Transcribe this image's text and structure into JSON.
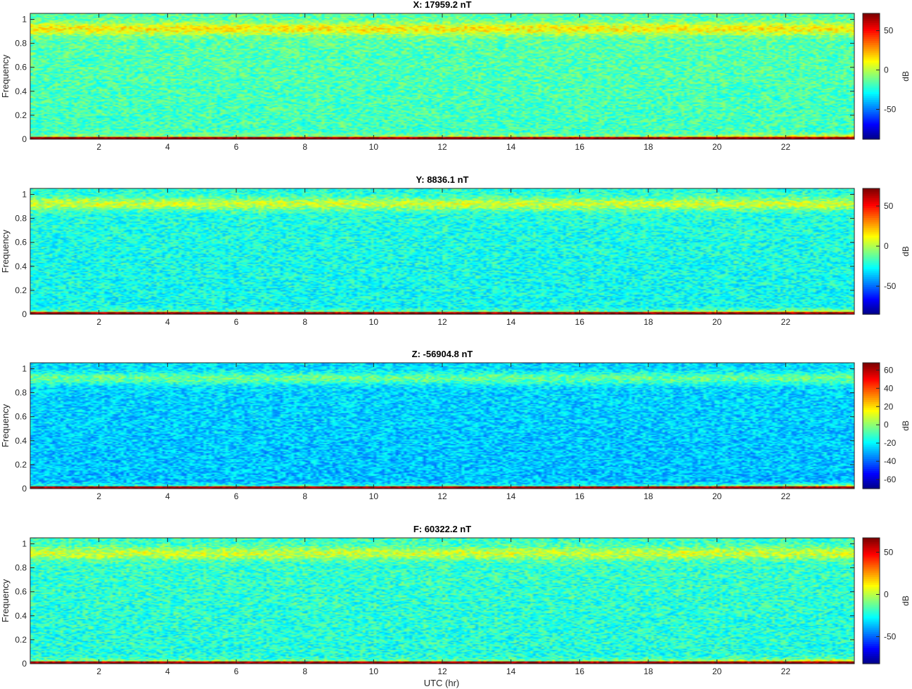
{
  "figure": {
    "xlabel": "UTC (hr)"
  },
  "chart_data": [
    {
      "type": "heatmap",
      "title": "X: 17959.2 nT",
      "xlabel": "",
      "ylabel": "Frequency",
      "xlim": [
        0,
        24
      ],
      "ylim": [
        0,
        1.05
      ],
      "xticks": [
        2,
        4,
        6,
        8,
        10,
        12,
        14,
        16,
        18,
        20,
        22
      ],
      "yticks": [
        0,
        0.2,
        0.4,
        0.6,
        0.8,
        1
      ],
      "colorbar": {
        "label": "dB",
        "clim": [
          -88,
          72
        ],
        "ticks": [
          -50,
          0,
          50
        ],
        "colormap": "jet"
      },
      "baseline_db": -18,
      "band_db": 10,
      "lowfreq_db": 70,
      "noise_db": 14
    },
    {
      "type": "heatmap",
      "title": "Y: 8836.1 nT",
      "xlabel": "",
      "ylabel": "Frequency",
      "xlim": [
        0,
        24
      ],
      "ylim": [
        0,
        1.05
      ],
      "xticks": [
        2,
        4,
        6,
        8,
        10,
        12,
        14,
        16,
        18,
        20,
        22
      ],
      "yticks": [
        0,
        0.2,
        0.4,
        0.6,
        0.8,
        1
      ],
      "colorbar": {
        "label": "dB",
        "clim": [
          -85,
          72
        ],
        "ticks": [
          -50,
          0,
          50
        ],
        "colormap": "jet"
      },
      "baseline_db": -25,
      "band_db": 2,
      "lowfreq_db": 70,
      "noise_db": 14
    },
    {
      "type": "heatmap",
      "title": "Z: -56904.8 nT",
      "xlabel": "",
      "ylabel": "Frequency",
      "xlim": [
        0,
        24
      ],
      "ylim": [
        0,
        1.05
      ],
      "xticks": [
        2,
        4,
        6,
        8,
        10,
        12,
        14,
        16,
        18,
        20,
        22
      ],
      "yticks": [
        0,
        0.2,
        0.4,
        0.6,
        0.8,
        1
      ],
      "colorbar": {
        "label": "dB",
        "clim": [
          -70,
          68
        ],
        "ticks": [
          -60,
          -40,
          -20,
          0,
          20,
          40,
          60
        ],
        "colormap": "jet"
      },
      "baseline_db": -27,
      "band_db": -8,
      "lowfreq_db": 65,
      "noise_db": 12
    },
    {
      "type": "heatmap",
      "title": "F: 60322.2 nT",
      "xlabel": "UTC (hr)",
      "ylabel": "Frequency",
      "xlim": [
        0,
        24
      ],
      "ylim": [
        0,
        1.05
      ],
      "xticks": [
        2,
        4,
        6,
        8,
        10,
        12,
        14,
        16,
        18,
        20,
        22
      ],
      "yticks": [
        0,
        0.2,
        0.4,
        0.6,
        0.8,
        1
      ],
      "colorbar": {
        "label": "dB",
        "clim": [
          -82,
          67
        ],
        "ticks": [
          -50,
          0,
          50
        ],
        "colormap": "jet"
      },
      "baseline_db": -22,
      "band_db": 0,
      "lowfreq_db": 65,
      "noise_db": 14
    }
  ]
}
